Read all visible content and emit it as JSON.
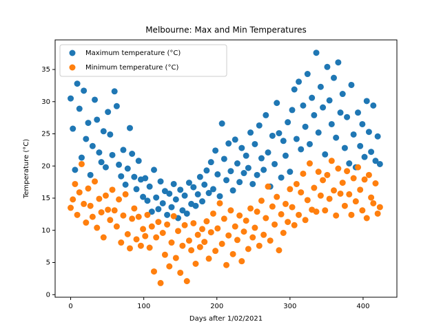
{
  "chart_data": {
    "type": "scatter",
    "title": "Melbourne: Max and Min Temperatures",
    "x_label": "Days after 1/02/2021",
    "y_label": "Temperature (°C)",
    "x": [
      0,
      3,
      6,
      9,
      12,
      15,
      18,
      21,
      24,
      27,
      30,
      33,
      36,
      39,
      42,
      45,
      48,
      51,
      54,
      57,
      60,
      63,
      66,
      69,
      72,
      75,
      78,
      81,
      84,
      87,
      90,
      93,
      96,
      99,
      102,
      105,
      108,
      111,
      114,
      117,
      120,
      123,
      126,
      129,
      132,
      135,
      138,
      141,
      144,
      147,
      150,
      153,
      156,
      159,
      162,
      165,
      168,
      171,
      174,
      177,
      180,
      183,
      186,
      189,
      192,
      195,
      198,
      201,
      204,
      207,
      210,
      213,
      216,
      219,
      222,
      225,
      228,
      231,
      234,
      237,
      240,
      243,
      246,
      249,
      252,
      255,
      258,
      261,
      264,
      267,
      270,
      273,
      276,
      279,
      282,
      285,
      288,
      291,
      294,
      297,
      300,
      303,
      306,
      309,
      312,
      315,
      318,
      321,
      324,
      327,
      330,
      333,
      336,
      339,
      342,
      345,
      348,
      351,
      354,
      357,
      360,
      363,
      366,
      369,
      372,
      375,
      378,
      381,
      384,
      387,
      390,
      393,
      396,
      399,
      402,
      405,
      408,
      411,
      414,
      417,
      420,
      423
    ],
    "series": [
      {
        "name": "Maximum temperature (°C)",
        "color": "#1f77b4",
        "values": [
          30.5,
          25.8,
          19.4,
          32.8,
          28.9,
          21.3,
          31.7,
          24.2,
          26.7,
          18.6,
          23.1,
          30.3,
          27.2,
          22.1,
          20.6,
          25.4,
          19.8,
          28.4,
          24.9,
          21.7,
          31.6,
          29.3,
          20.2,
          18.4,
          22.5,
          17.1,
          19.6,
          25.9,
          21.9,
          18.3,
          16.4,
          20.8,
          17.9,
          15.2,
          18.1,
          14.6,
          16.8,
          12.9,
          19.4,
          15.1,
          13.3,
          17.6,
          14.2,
          16.1,
          12.4,
          15.7,
          13.6,
          17.2,
          14.8,
          11.9,
          16.3,
          13.1,
          15.4,
          12.6,
          17.4,
          14.1,
          16.7,
          13.8,
          15.6,
          18.3,
          14.5,
          17.1,
          19.3,
          15.8,
          20.6,
          16.4,
          22.4,
          18.7,
          15.3,
          26.6,
          21.1,
          17.8,
          23.5,
          19.2,
          16.2,
          24.1,
          20.4,
          17.5,
          22.8,
          18.9,
          21.6,
          19.7,
          25.2,
          17.2,
          23.4,
          18.6,
          26.3,
          21.2,
          19.4,
          27.9,
          22.1,
          16.8,
          24.7,
          20.3,
          29.8,
          25.1,
          18.2,
          23.9,
          21.6,
          26.8,
          19.1,
          28.7,
          31.9,
          24.2,
          33.1,
          22.6,
          29.4,
          26.1,
          34.3,
          23.4,
          30.6,
          27.9,
          37.6,
          25.2,
          32.3,
          29.1,
          21.8,
          35.4,
          30.2,
          26.5,
          33.7,
          24.4,
          36.1,
          28.3,
          31.2,
          22.8,
          27.6,
          20.4,
          32.6,
          24.9,
          19.8,
          28.3,
          23.1,
          26.5,
          21.4,
          30.1,
          25.3,
          22.2,
          29.4,
          20.8,
          24.6,
          20.3
        ]
      },
      {
        "name": "Minimum temperature (°C)",
        "color": "#ff7f0e",
        "values": [
          13.5,
          14.8,
          17.2,
          12.4,
          15.9,
          20.3,
          14.1,
          11.2,
          16.5,
          13.8,
          12.1,
          17.6,
          10.4,
          14.9,
          12.8,
          8.9,
          15.4,
          13.2,
          11.6,
          16.3,
          13.1,
          10.6,
          14.8,
          8.1,
          12.3,
          15.6,
          9.4,
          7.2,
          11.8,
          13.4,
          8.6,
          12.1,
          7.6,
          10.2,
          9.1,
          12.4,
          7.3,
          10.6,
          3.6,
          8.9,
          11.3,
          1.8,
          9.6,
          6.2,
          10.9,
          4.4,
          8.1,
          12.2,
          5.7,
          9.9,
          3.4,
          7.6,
          10.8,
          2.1,
          8.4,
          6.9,
          11.1,
          4.8,
          9.3,
          7.4,
          10.2,
          8.2,
          11.4,
          5.6,
          9.7,
          12.6,
          6.8,
          10.3,
          14.2,
          7.9,
          11.8,
          4.6,
          9.2,
          13.1,
          6.3,
          10.6,
          8.5,
          12.3,
          5.2,
          9.8,
          11.5,
          7.1,
          13.4,
          8.9,
          10.4,
          12.9,
          7.6,
          14.6,
          9.3,
          11.9,
          16.8,
          8.4,
          13.7,
          10.9,
          15.2,
          6.9,
          12.5,
          9.6,
          14.1,
          11.3,
          16.4,
          13.6,
          10.8,
          17.2,
          12.4,
          15.9,
          18.8,
          11.6,
          14.7,
          20.4,
          13.2,
          16.6,
          12.9,
          19.1,
          15.4,
          17.8,
          13.1,
          18.6,
          14.9,
          20.8,
          16.2,
          12.3,
          19.6,
          15.7,
          17.4,
          13.8,
          19.2,
          15.6,
          12.4,
          18.1,
          14.5,
          19.8,
          16.3,
          13.1,
          17.9,
          11.9,
          18.6,
          15.1,
          14.2,
          17.3,
          12.6,
          13.6
        ]
      }
    ],
    "xlim": [
      -21.25,
      446.25
    ],
    "ylim": [
      -0.4,
      39.6
    ],
    "xticks": [
      0,
      100,
      200,
      300,
      400
    ],
    "yticks": [
      0,
      5,
      10,
      15,
      20,
      25,
      30,
      35
    ],
    "legend": "upper left"
  }
}
